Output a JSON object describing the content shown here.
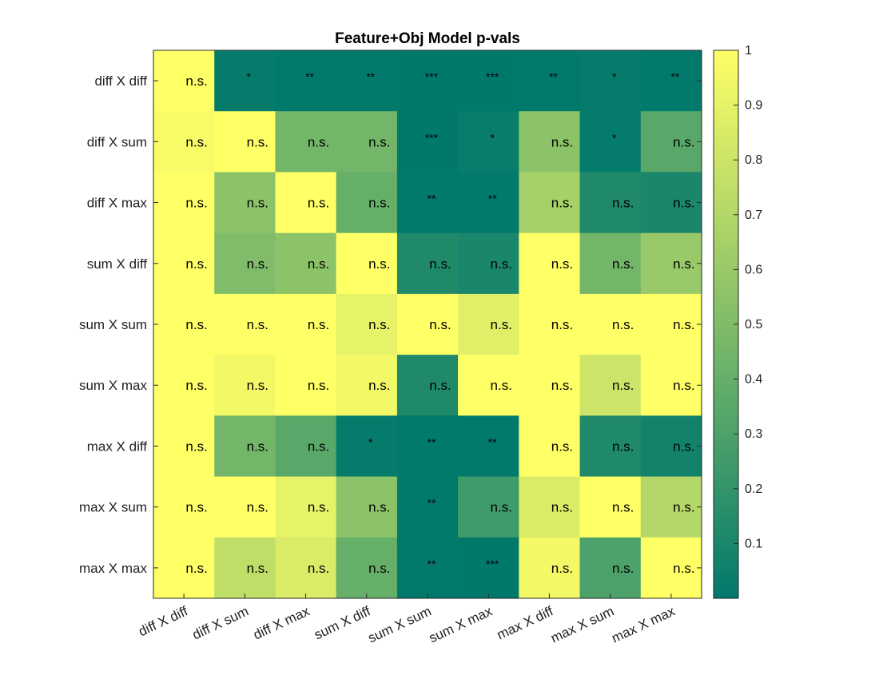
{
  "chart_data": {
    "type": "heatmap",
    "title": "Feature+Obj Model p-vals",
    "row_labels": [
      "diff X diff",
      "diff X sum",
      "diff X max",
      "sum X diff",
      "sum X sum",
      "sum X max",
      "max X diff",
      "max X sum",
      "max X max"
    ],
    "col_labels": [
      "diff X diff",
      "diff X sum",
      "diff X max",
      "sum X diff",
      "sum X sum",
      "sum X max",
      "max X diff",
      "max X sum",
      "max X max"
    ],
    "values": [
      [
        1.0,
        0.02,
        0.005,
        0.005,
        0.0005,
        0.0005,
        0.005,
        0.02,
        0.005
      ],
      [
        0.97,
        1.0,
        0.45,
        0.45,
        0.0005,
        0.03,
        0.55,
        0.02,
        0.35
      ],
      [
        1.0,
        0.55,
        1.0,
        0.4,
        0.005,
        0.005,
        0.65,
        0.12,
        0.1
      ],
      [
        1.0,
        0.5,
        0.55,
        1.0,
        0.12,
        0.1,
        1.0,
        0.45,
        0.6
      ],
      [
        1.0,
        1.0,
        1.0,
        0.9,
        1.0,
        0.88,
        1.0,
        1.0,
        1.0
      ],
      [
        1.0,
        0.95,
        1.0,
        0.95,
        0.12,
        1.0,
        1.0,
        0.8,
        1.0
      ],
      [
        1.0,
        0.45,
        0.35,
        0.02,
        0.005,
        0.005,
        1.0,
        0.12,
        0.07
      ],
      [
        1.0,
        1.0,
        0.9,
        0.55,
        0.005,
        0.25,
        0.85,
        1.0,
        0.7
      ],
      [
        1.0,
        0.75,
        0.85,
        0.4,
        0.005,
        0.0005,
        0.95,
        0.3,
        1.0
      ]
    ],
    "annotations": [
      [
        "n.s.",
        "*",
        "**",
        "**",
        "***",
        "***",
        "**",
        "*",
        "**"
      ],
      [
        "n.s.",
        "n.s.",
        "n.s.",
        "n.s.",
        "***",
        "*",
        "n.s.",
        "*",
        "n.s."
      ],
      [
        "n.s.",
        "n.s.",
        "n.s.",
        "n.s.",
        "**",
        "**",
        "n.s.",
        "n.s.",
        "n.s."
      ],
      [
        "n.s.",
        "n.s.",
        "n.s.",
        "n.s.",
        "n.s.",
        "n.s.",
        "n.s.",
        "n.s.",
        "n.s."
      ],
      [
        "n.s.",
        "n.s.",
        "n.s.",
        "n.s.",
        "n.s.",
        "n.s.",
        "n.s.",
        "n.s.",
        "n.s."
      ],
      [
        "n.s.",
        "n.s.",
        "n.s.",
        "n.s.",
        "n.s.",
        "n.s.",
        "n.s.",
        "n.s.",
        "n.s."
      ],
      [
        "n.s.",
        "n.s.",
        "n.s.",
        "*",
        "**",
        "**",
        "n.s.",
        "n.s.",
        "n.s."
      ],
      [
        "n.s.",
        "n.s.",
        "n.s.",
        "n.s.",
        "**",
        "n.s.",
        "n.s.",
        "n.s.",
        "n.s."
      ],
      [
        "n.s.",
        "n.s.",
        "n.s.",
        "n.s.",
        "**",
        "***",
        "n.s.",
        "n.s.",
        "n.s."
      ]
    ],
    "colorbar": {
      "range": [
        0,
        1
      ],
      "ticks": [
        0.1,
        0.2,
        0.3,
        0.4,
        0.5,
        0.6,
        0.7,
        0.8,
        0.9,
        1
      ],
      "tick_labels": [
        "0.1",
        "0.2",
        "0.3",
        "0.4",
        "0.5",
        "0.6",
        "0.7",
        "0.8",
        "0.9",
        "1"
      ],
      "colormap_low": "#00796b",
      "colormap_high": "#ffff66",
      "placement": "right"
    },
    "grid": false
  }
}
